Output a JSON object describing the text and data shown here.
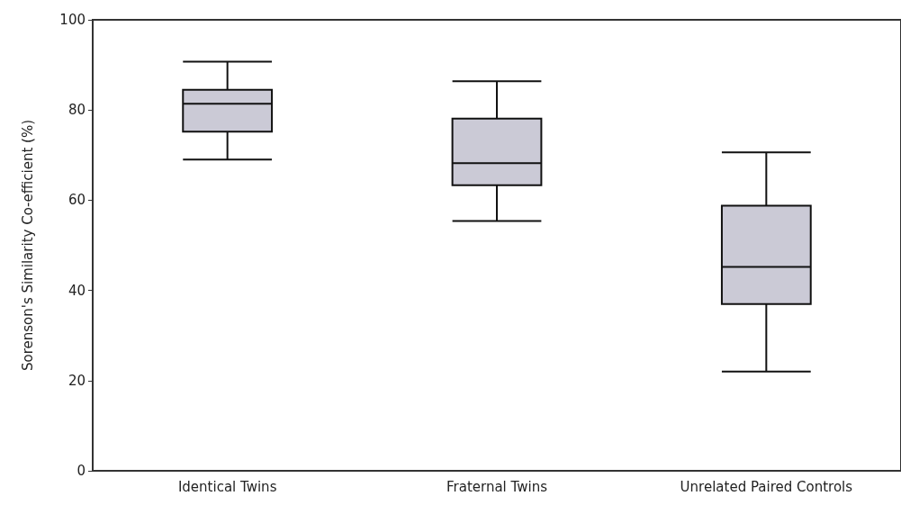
{
  "chart_data": {
    "type": "box",
    "ylabel": "Sorenson's Similarity Co-efficient (%)",
    "categories": [
      "Identical Twins",
      "Fraternal Twins",
      "Unrelated Paired Controls"
    ],
    "boxes": [
      {
        "low": 69,
        "q1": 75.2,
        "median": 81.4,
        "q3": 84.5,
        "high": 90.7
      },
      {
        "low": 55.4,
        "q1": 63.3,
        "median": 68.2,
        "q3": 78.1,
        "high": 86.4
      },
      {
        "low": 22,
        "q1": 37,
        "median": 45.2,
        "q3": 58.8,
        "high": 70.6
      }
    ],
    "color": "#cbcad6",
    "ylim": [
      0,
      100
    ],
    "yticks": [
      0,
      20,
      40,
      60,
      80,
      100
    ],
    "grid": false
  }
}
